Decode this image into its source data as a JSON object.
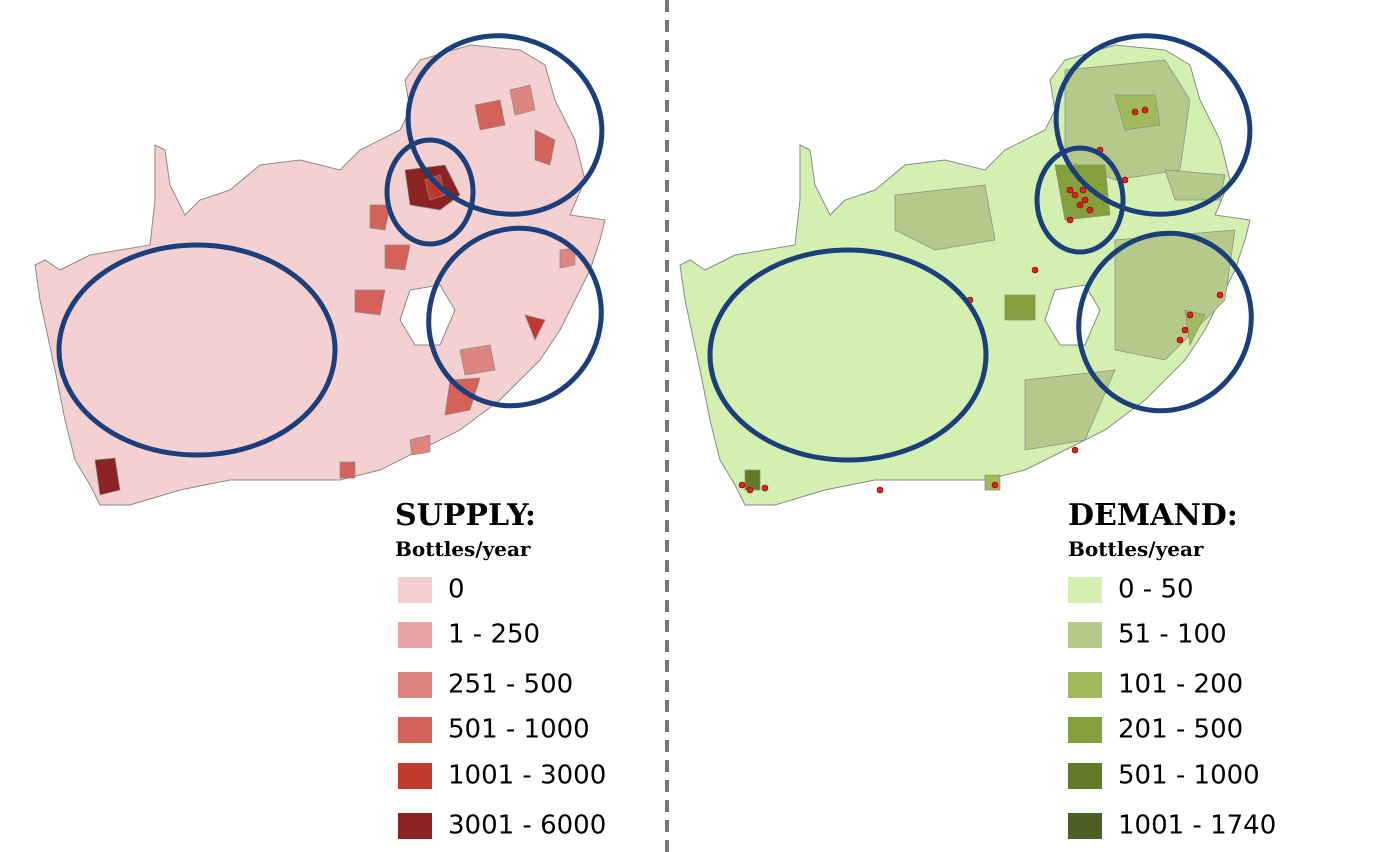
{
  "supply": {
    "title": "SUPPLY:",
    "unit": "Bottles/year",
    "legend": [
      {
        "label": "0",
        "color": "#f5d0d0"
      },
      {
        "label": "1 - 250",
        "color": "#e8a4a4"
      },
      {
        "label": "251 - 500",
        "color": "#de8580"
      },
      {
        "label": "501 - 1000",
        "color": "#d4625a"
      },
      {
        "label": "1001 - 3000",
        "color": "#c0392f"
      },
      {
        "label": "3001 - 6000",
        "color": "#8b2323"
      }
    ]
  },
  "demand": {
    "title": "DEMAND:",
    "unit": "Bottles/year",
    "legend": [
      {
        "label": "0 - 50",
        "color": "#d4f0b0"
      },
      {
        "label": "51 - 100",
        "color": "#b5c98a"
      },
      {
        "label": "101 - 200",
        "color": "#9fb95c"
      },
      {
        "label": "201 - 500",
        "color": "#84a03c"
      },
      {
        "label": "501 - 1000",
        "color": "#63792a"
      },
      {
        "label": "1001 - 1740",
        "color": "#4d5f25"
      }
    ]
  }
}
